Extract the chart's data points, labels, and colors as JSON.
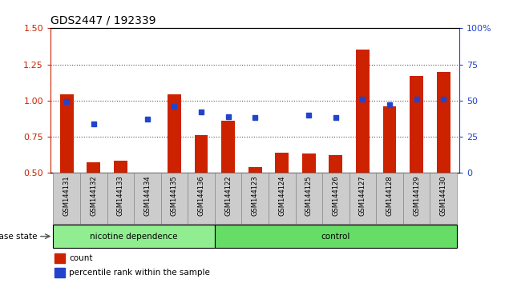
{
  "title": "GDS2447 / 192339",
  "samples": [
    "GSM144131",
    "GSM144132",
    "GSM144133",
    "GSM144134",
    "GSM144135",
    "GSM144136",
    "GSM144122",
    "GSM144123",
    "GSM144124",
    "GSM144125",
    "GSM144126",
    "GSM144127",
    "GSM144128",
    "GSM144129",
    "GSM144130"
  ],
  "bar_values": [
    1.04,
    0.57,
    0.58,
    0.5,
    1.04,
    0.76,
    0.86,
    0.54,
    0.64,
    0.63,
    0.62,
    1.35,
    0.96,
    1.17,
    1.2
  ],
  "dot_values": [
    0.99,
    0.84,
    null,
    0.87,
    0.96,
    0.92,
    0.89,
    0.88,
    null,
    0.9,
    0.88,
    1.01,
    0.97,
    1.01,
    1.01
  ],
  "bar_color": "#cc2200",
  "dot_color": "#2244cc",
  "ylim_left": [
    0.5,
    1.5
  ],
  "ylim_right": [
    0,
    100
  ],
  "yticks_left": [
    0.5,
    0.75,
    1.0,
    1.25,
    1.5
  ],
  "yticks_right": [
    0,
    25,
    50,
    75,
    100
  ],
  "groups": [
    {
      "label": "nicotine dependence",
      "start": 0,
      "end": 6,
      "color": "#90ee90"
    },
    {
      "label": "control",
      "start": 6,
      "end": 15,
      "color": "#66dd66"
    }
  ],
  "group_row_label": "disease state",
  "legend_count_label": "count",
  "legend_pct_label": "percentile rank within the sample",
  "bar_width": 0.5,
  "tick_label_fontsize": 6.0,
  "title_fontsize": 10,
  "axis_color_left": "#cc2200",
  "axis_color_right": "#2244cc",
  "dotted_line_color": "#555555",
  "background_color": "#ffffff",
  "plot_bg_color": "#ffffff",
  "xtick_bg_color": "#cccccc",
  "xtick_border_color": "#888888"
}
